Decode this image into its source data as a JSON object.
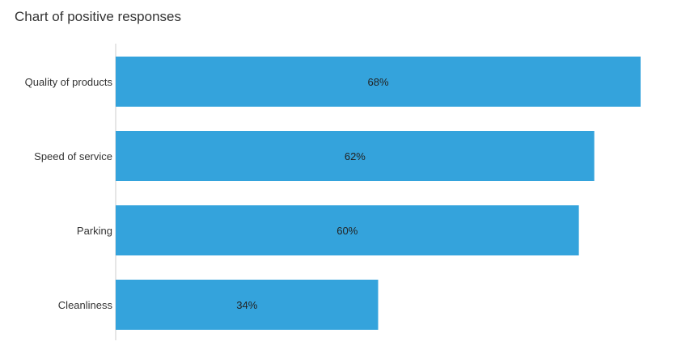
{
  "chart_data": {
    "type": "bar",
    "orientation": "horizontal",
    "title": "Chart of positive responses",
    "categories": [
      "Quality of products",
      "Speed of service",
      "Parking",
      "Cleanliness"
    ],
    "values": [
      68,
      62,
      60,
      34
    ],
    "value_labels": [
      "68%",
      "62%",
      "60%",
      "34%"
    ],
    "xlim": [
      0,
      68
    ],
    "grid": false,
    "legend": "none",
    "colors": {
      "bar": "#34A3DC",
      "axis": "#cccccc"
    }
  }
}
